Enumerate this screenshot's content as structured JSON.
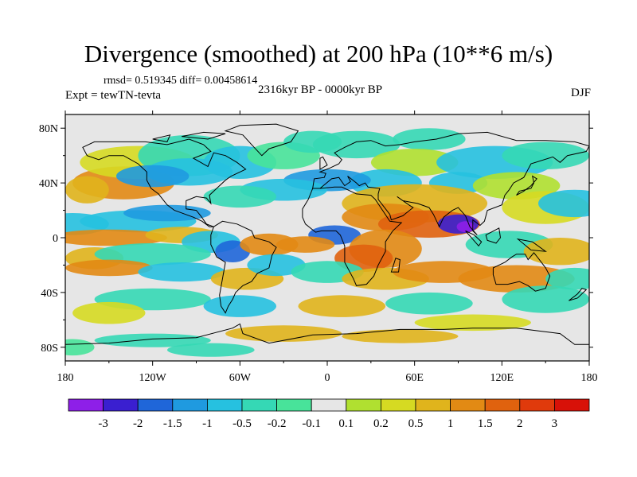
{
  "title": "Divergence (smoothed) at 200 hPa (10**6 m/s)",
  "stats": "rmsd= 0.519345 diff= 0.00458614",
  "experiment": "Expt = tewTN-tevta",
  "period": "2316kyr BP - 0000kyr BP",
  "season": "DJF",
  "colors": {
    "land_outline": "#000000",
    "neutral": "#e6e6e6",
    "levels": [
      "#8e1fe8",
      "#3a1fd0",
      "#1f66d9",
      "#1f9ae0",
      "#26c1e0",
      "#35d8b5",
      "#48e39a",
      "#e6e6e6",
      "#b0e030",
      "#d6da22",
      "#e0b41c",
      "#e28a14",
      "#e0620e",
      "#e03a0c",
      "#d81108"
    ]
  },
  "chart_data": {
    "type": "heatmap",
    "projection": "cylindrical-equidistant",
    "variable": "Divergence (smoothed) at 200 hPa",
    "units": "10**6 m/s",
    "x_ticks": [
      "180",
      "120W",
      "60W",
      "0",
      "60E",
      "120E",
      "180"
    ],
    "y_ticks": [
      "80N",
      "40N",
      "0",
      "40S",
      "80S"
    ],
    "xlim": [
      -180,
      180
    ],
    "ylim": [
      -90,
      90
    ],
    "colorbar_labels": [
      "-3",
      "-2",
      "-1.5",
      "-1",
      "-0.5",
      "-0.2",
      "-0.1",
      "0.1",
      "0.2",
      "0.5",
      "1",
      "1.5",
      "2",
      "3"
    ],
    "colorbar_levels": [
      -3,
      -2,
      -1.5,
      -1,
      -0.5,
      -0.2,
      -0.1,
      0.1,
      0.2,
      0.5,
      1,
      1.5,
      2,
      3
    ]
  }
}
